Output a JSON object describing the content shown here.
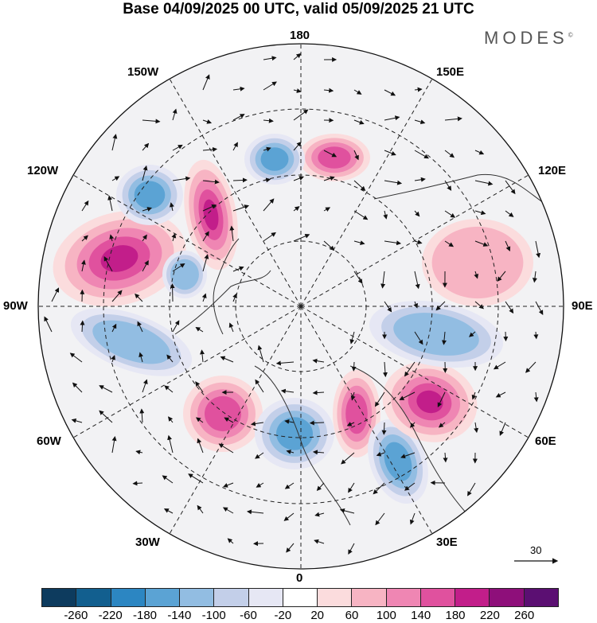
{
  "header": {
    "title": "Base 04/09/2025 00 UTC, valid 05/09/2025 21 UTC",
    "brand": "MODES",
    "brand_mark": "©"
  },
  "map": {
    "projection": "north-polar-stereographic",
    "longitude_labels": {
      "lon_180": "180",
      "lon_150e": "150E",
      "lon_120e": "120E",
      "lon_90e": "90E",
      "lon_60e": "60E",
      "lon_30e": "30E",
      "lon_0": "0",
      "lon_30w": "30W",
      "lon_60w": "60W",
      "lon_90w": "90W",
      "lon_120w": "120W",
      "lon_150w": "150W"
    },
    "reference_vector": {
      "label": "30"
    },
    "anomalies": [
      {
        "name": "pos-alaska-west-canada",
        "sign": 1,
        "strength": 240
      },
      {
        "name": "pos-bering-gulf",
        "sign": 1,
        "strength": 200
      },
      {
        "name": "pos-east-siberian",
        "sign": 1,
        "strength": 140
      },
      {
        "name": "neg-eastern-pacific",
        "sign": -1,
        "strength": 140
      },
      {
        "name": "neg-alaska-north",
        "sign": -1,
        "strength": 140
      },
      {
        "name": "neg-hudson",
        "sign": -1,
        "strength": 120
      },
      {
        "name": "neg-canada-south",
        "sign": -1,
        "strength": 120
      },
      {
        "name": "pos-greenland-sea",
        "sign": 1,
        "strength": 160
      },
      {
        "name": "neg-norway",
        "sign": -1,
        "strength": 140
      },
      {
        "name": "pos-scandinavia",
        "sign": 1,
        "strength": 140
      },
      {
        "name": "neg-western-russia",
        "sign": -1,
        "strength": 160
      },
      {
        "name": "pos-west-siberia",
        "sign": 1,
        "strength": 180
      },
      {
        "name": "neg-central-siberia",
        "sign": -1,
        "strength": 120
      },
      {
        "name": "pos-east-asia",
        "sign": 1,
        "strength": 60
      }
    ]
  },
  "colorbar": {
    "colors": [
      "#0d3b5e",
      "#125f8f",
      "#2c86c2",
      "#5ba3d4",
      "#92bde2",
      "#c3cfe9",
      "#e6e7f4",
      "#ffffff",
      "#fbdcdd",
      "#f7b4c3",
      "#ef86b3",
      "#e0519e",
      "#c21e8a",
      "#8e0f7a",
      "#5b0f72"
    ],
    "ticks": [
      "-260",
      "-220",
      "-180",
      "-140",
      "-100",
      "-60",
      "-20",
      "20",
      "60",
      "100",
      "140",
      "180",
      "220",
      "260"
    ]
  }
}
